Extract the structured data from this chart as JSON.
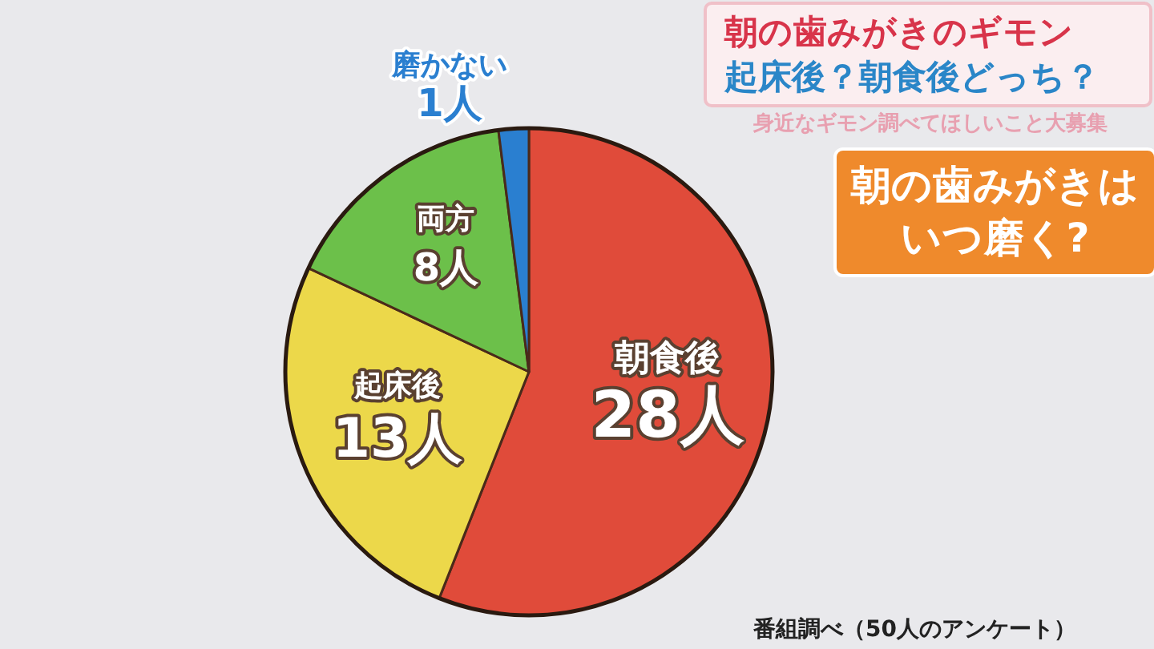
{
  "chart_data": {
    "type": "pie",
    "title": "朝の歯みがきはいつ磨く?",
    "annotations": [
      "朝の歯みがきのギモン",
      "起床後？朝食後どっち？",
      "身近なギモン調べてほしいこと大募集",
      "番組調べ（50人のアンケート）"
    ],
    "categories": [
      "朝食後",
      "起床後",
      "両方",
      "磨かない"
    ],
    "values": [
      28,
      13,
      8,
      1
    ],
    "colors": [
      "#e04b3a",
      "#ecd84a",
      "#6cc04a",
      "#2a7fd0"
    ],
    "value_labels": [
      "28人",
      "13人",
      "8人",
      "1人"
    ]
  }
}
